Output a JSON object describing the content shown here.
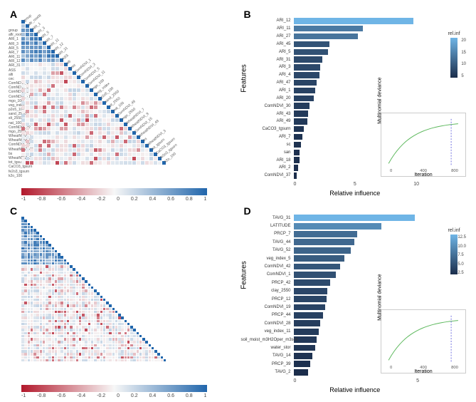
{
  "panels": {
    "A": {
      "label": "A"
    },
    "B": {
      "label": "B"
    },
    "C": {
      "label": "C"
    },
    "D": {
      "label": "D"
    }
  },
  "colors": {
    "ramp_low": "#b2182b",
    "ramp_mid": "#f7f7f7",
    "ramp_high": "#2166ac"
  },
  "corr_ramp": {
    "ticks": [
      "-1",
      "-0.8",
      "-0.6",
      "-0.4",
      "-0.2",
      "0",
      "0.2",
      "0.4",
      "0.6",
      "0.8",
      "1"
    ]
  },
  "corr_A": {
    "n": 34,
    "labels": [
      "group",
      "aflr_root3t",
      "ARI_1",
      "ARI_3",
      "ARI_5",
      "ARI_7",
      "ARI_11",
      "ARI_12",
      "ARI_31",
      "ASS",
      "alti",
      "cec",
      "ComNDVI_1",
      "ComNDVI_3",
      "ComNDVI_5",
      "ComNDVI_11",
      "mgo_100",
      "veg_index",
      "p2o5_100",
      "sand_2550",
      "slt_2550",
      "nat_100",
      "ComNDVI_49",
      "mgo_2550",
      "WheatNDVI_7",
      "WheatNDVI_9",
      "ComNDVI_15",
      "WheatNDVI_49",
      "bs",
      "WheatNDVI_3",
      "tot_tgsurn",
      "CaCO3_tgsurn",
      "fe2o3_tgsurn",
      "k2o_100"
    ]
  },
  "corr_C": {
    "n": 48,
    "labels_sample": [
      "soil_moist_m3H2O",
      "TAVG_31",
      "LATITUDE",
      "PRCP_7",
      "TAVG_44",
      "veg_index",
      "ComNDVI"
    ]
  },
  "bar_B": {
    "y_title": "Features",
    "x_title": "Relative influence",
    "x_max": 22,
    "x_ticks": [
      "0",
      "5",
      "10"
    ],
    "legend_title": "rel.inf",
    "legend_ticks": [
      "20",
      "15",
      "10",
      "5"
    ],
    "bars": [
      {
        "label": "ARI_12",
        "value": 21.0
      },
      {
        "label": "ARI_11",
        "value": 12.2
      },
      {
        "label": "ARI_27",
        "value": 11.3
      },
      {
        "label": "ARI_45",
        "value": 6.3
      },
      {
        "label": "ARI_5",
        "value": 6.0
      },
      {
        "label": "ARI_31",
        "value": 5.0
      },
      {
        "label": "ARI_3",
        "value": 4.7
      },
      {
        "label": "ARI_4",
        "value": 4.5
      },
      {
        "label": "ARI_47",
        "value": 4.0
      },
      {
        "label": "ARI_1",
        "value": 3.8
      },
      {
        "label": "ARI_20",
        "value": 3.6
      },
      {
        "label": "ComNDVI_30",
        "value": 2.8
      },
      {
        "label": "ARI_43",
        "value": 2.6
      },
      {
        "label": "ARI_49",
        "value": 2.4
      },
      {
        "label": "CaCO3_tgsurn",
        "value": 1.8
      },
      {
        "label": "ARI_7",
        "value": 1.6
      },
      {
        "label": "sc",
        "value": 1.3
      },
      {
        "label": "san",
        "value": 1.1
      },
      {
        "label": "ARI_18",
        "value": 1.0
      },
      {
        "label": "ARI_2",
        "value": 0.8
      },
      {
        "label": "ComNDVI_37",
        "value": 0.6
      }
    ],
    "inset": {
      "y_title": "Multinomial deviance",
      "x_title": "Iteration",
      "line_color": "#5cb85c",
      "vline_color": "#7070e0",
      "x_ticks": [
        "0",
        "400",
        "800"
      ]
    }
  },
  "bar_D": {
    "y_title": "Features",
    "x_title": "Relative influence",
    "x_max": 14,
    "x_ticks": [
      "0",
      "5"
    ],
    "legend_title": "rel.inf",
    "legend_ticks": [
      "12.5",
      "10.0",
      "7.5",
      "5.0",
      "2.5"
    ],
    "bars": [
      {
        "label": "TAVG_31",
        "value": 13.5
      },
      {
        "label": "LATITUDE",
        "value": 9.8
      },
      {
        "label": "PRCP_7",
        "value": 7.1
      },
      {
        "label": "TAVG_44",
        "value": 6.8
      },
      {
        "label": "TAVG_52",
        "value": 6.4
      },
      {
        "label": "veg_index_5",
        "value": 5.7
      },
      {
        "label": "ComNDVI_42",
        "value": 5.2
      },
      {
        "label": "ComNDVI_1",
        "value": 4.7
      },
      {
        "label": "PRCP_42",
        "value": 4.1
      },
      {
        "label": "clay_2550",
        "value": 3.8
      },
      {
        "label": "PRCP_12",
        "value": 3.7
      },
      {
        "label": "ComNDVI_19",
        "value": 3.5
      },
      {
        "label": "PRCP_44",
        "value": 3.3
      },
      {
        "label": "ComNDVI_28",
        "value": 3.0
      },
      {
        "label": "veg_index_11",
        "value": 2.8
      },
      {
        "label": "soil_moist_m3H2Oper_m3soil",
        "value": 2.6
      },
      {
        "label": "water_stor",
        "value": 2.4
      },
      {
        "label": "TAVG_14",
        "value": 2.1
      },
      {
        "label": "PRCP_39",
        "value": 1.9
      },
      {
        "label": "TAVG_2",
        "value": 1.6
      }
    ],
    "inset": {
      "y_title": "Multinomial deviance",
      "x_title": "Iteration",
      "line_color": "#5cb85c",
      "vline_color": "#7070e0",
      "x_ticks": [
        "0",
        "400",
        "800"
      ]
    }
  },
  "bar_gradient": {
    "low": "#1b2d4b",
    "high": "#6fb5e6"
  }
}
